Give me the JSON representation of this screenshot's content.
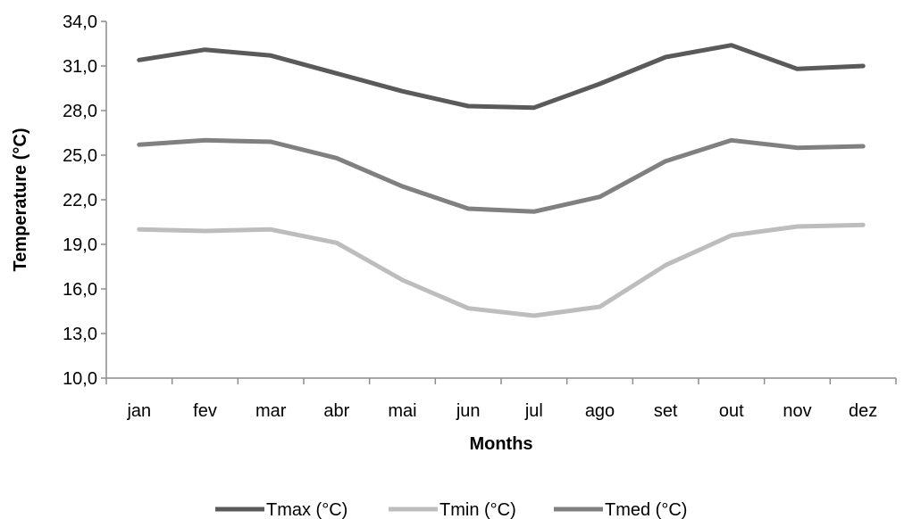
{
  "chart_data": {
    "type": "line",
    "categories": [
      "jan",
      "fev",
      "mar",
      "abr",
      "mai",
      "jun",
      "jul",
      "ago",
      "set",
      "out",
      "nov",
      "dez"
    ],
    "series": [
      {
        "name": "Tmax (°C)",
        "color": "#5a5a5a",
        "values": [
          31.4,
          32.1,
          31.7,
          30.5,
          29.3,
          28.3,
          28.2,
          29.8,
          31.6,
          32.4,
          30.8,
          31.0
        ]
      },
      {
        "name": "Tmin (°C)",
        "color": "#bdbdbd",
        "values": [
          20.0,
          19.9,
          20.0,
          19.1,
          16.6,
          14.7,
          14.2,
          14.8,
          17.6,
          19.6,
          20.2,
          20.3
        ]
      },
      {
        "name": "Tmed (°C)",
        "color": "#808080",
        "values": [
          25.7,
          26.0,
          25.9,
          24.8,
          22.9,
          21.4,
          21.2,
          22.2,
          24.6,
          26.0,
          25.5,
          25.6
        ]
      }
    ],
    "xlabel": "Months",
    "ylabel": "Temperature (°C)",
    "ylim": [
      10.0,
      34.0
    ],
    "yticks": [
      "10,0",
      "13,0",
      "16,0",
      "19,0",
      "22,0",
      "25,0",
      "28,0",
      "31,0",
      "34,0"
    ],
    "grid": false,
    "legend_position": "bottom"
  }
}
